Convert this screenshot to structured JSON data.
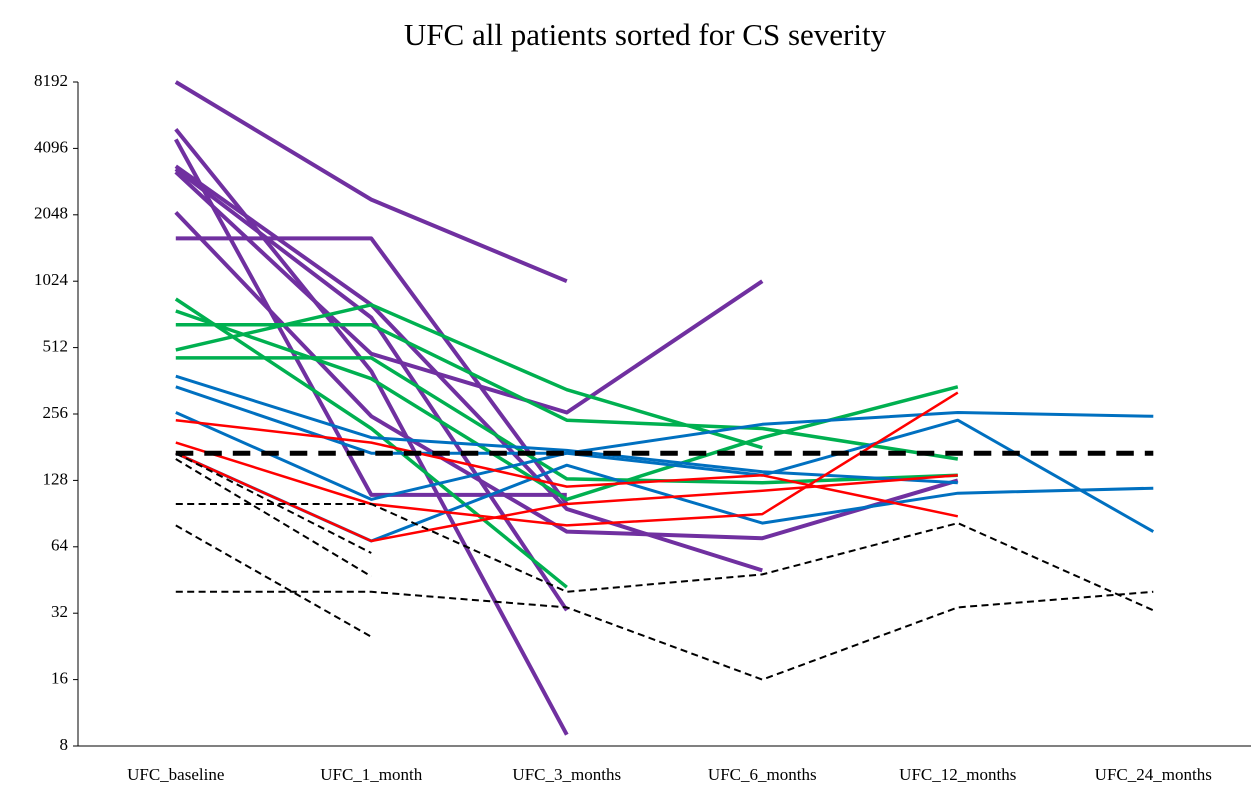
{
  "chart_data": {
    "type": "line",
    "title": "UFC all patients sorted for CS severity",
    "categories": [
      "UFC_baseline",
      "UFC_1_month",
      "UFC_3_months",
      "UFC_6_months",
      "UFC_12_months",
      "UFC_24_months"
    ],
    "log_scale": true,
    "log_base": 2,
    "ylim": [
      8,
      8192
    ],
    "yticks": [
      8,
      16,
      32,
      64,
      128,
      256,
      512,
      1024,
      2048,
      4096,
      8192
    ],
    "grid": false,
    "series": [
      {
        "color": "#7030a0",
        "line_width": 4,
        "dashed": false,
        "values": [
          8192,
          2400,
          1024,
          null,
          null,
          null
        ]
      },
      {
        "color": "#7030a0",
        "line_width": 4,
        "dashed": false,
        "values": [
          5000,
          400,
          9,
          null,
          null,
          null
        ]
      },
      {
        "color": "#7030a0",
        "line_width": 4,
        "dashed": false,
        "values": [
          4500,
          110,
          110,
          null,
          null,
          null
        ]
      },
      {
        "color": "#7030a0",
        "line_width": 4,
        "dashed": false,
        "values": [
          3300,
          700,
          33,
          null,
          null,
          null
        ]
      },
      {
        "color": "#7030a0",
        "line_width": 4,
        "dashed": false,
        "values": [
          3200,
          480,
          260,
          1024,
          null,
          null
        ]
      },
      {
        "color": "#7030a0",
        "line_width": 4,
        "dashed": false,
        "values": [
          3400,
          800,
          95,
          50,
          null,
          null
        ]
      },
      {
        "color": "#7030a0",
        "line_width": 4,
        "dashed": false,
        "values": [
          2100,
          250,
          75,
          70,
          128,
          null
        ]
      },
      {
        "color": "#7030a0",
        "line_width": 4,
        "dashed": false,
        "values": [
          1600,
          1600,
          100,
          null,
          null,
          null
        ]
      },
      {
        "color": "#00b050",
        "line_width": 3.5,
        "dashed": false,
        "values": [
          500,
          800,
          330,
          180,
          null,
          null
        ]
      },
      {
        "color": "#00b050",
        "line_width": 3.5,
        "dashed": false,
        "values": [
          650,
          650,
          240,
          220,
          160,
          null
        ]
      },
      {
        "color": "#00b050",
        "line_width": 3.5,
        "dashed": false,
        "values": [
          460,
          460,
          130,
          125,
          135,
          null
        ]
      },
      {
        "color": "#00b050",
        "line_width": 3.5,
        "dashed": false,
        "values": [
          750,
          370,
          105,
          200,
          340,
          null
        ]
      },
      {
        "color": "#00b050",
        "line_width": 3.5,
        "dashed": false,
        "values": [
          850,
          220,
          42,
          null,
          null,
          null
        ]
      },
      {
        "color": "#0070c0",
        "line_width": 3,
        "dashed": false,
        "values": [
          380,
          200,
          175,
          140,
          125,
          null
        ]
      },
      {
        "color": "#0070c0",
        "line_width": 3,
        "dashed": false,
        "values": [
          340,
          170,
          170,
          230,
          260,
          250
        ]
      },
      {
        "color": "#0070c0",
        "line_width": 3,
        "dashed": false,
        "values": [
          260,
          105,
          170,
          135,
          240,
          75
        ]
      },
      {
        "color": "#0070c0",
        "line_width": 3,
        "dashed": false,
        "values": [
          170,
          68,
          150,
          82,
          112,
          118
        ]
      },
      {
        "color": "#ff0000",
        "line_width": 2.5,
        "dashed": false,
        "values": [
          240,
          190,
          120,
          135,
          88,
          null
        ]
      },
      {
        "color": "#ff0000",
        "line_width": 2.5,
        "dashed": false,
        "values": [
          190,
          100,
          80,
          90,
          320,
          null
        ]
      },
      {
        "color": "#ff0000",
        "line_width": 2.5,
        "dashed": false,
        "values": [
          170,
          68,
          100,
          115,
          135,
          null
        ]
      },
      {
        "color": "#000000",
        "line_width": 2,
        "dashed": true,
        "values": [
          170,
          60,
          null,
          null,
          null,
          null
        ]
      },
      {
        "color": "#000000",
        "line_width": 2,
        "dashed": true,
        "values": [
          160,
          47,
          null,
          null,
          null,
          null
        ]
      },
      {
        "color": "#000000",
        "line_width": 2,
        "dashed": true,
        "values": [
          100,
          100,
          40,
          48,
          82,
          33
        ]
      },
      {
        "color": "#000000",
        "line_width": 2,
        "dashed": true,
        "values": [
          80,
          25,
          null,
          null,
          null,
          null
        ]
      },
      {
        "color": "#000000",
        "line_width": 2,
        "dashed": true,
        "values": [
          40,
          40,
          34,
          16,
          34,
          40
        ]
      },
      {
        "color": "#000000",
        "line_width": 5,
        "dashed": true,
        "values": [
          170,
          170,
          170,
          170,
          170,
          170
        ]
      }
    ]
  }
}
